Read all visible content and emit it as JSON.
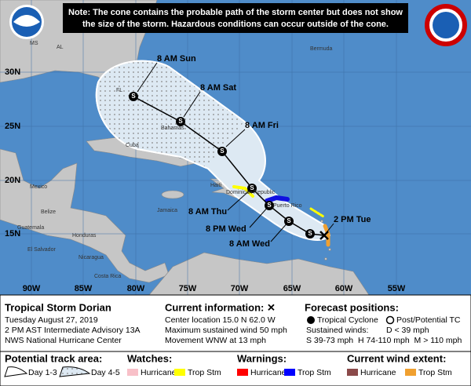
{
  "banner": {
    "lines": [
      "Note: The cone contains the probable path of the storm center but does not show",
      "the size of the storm. Hazardous conditions can occur outside of the cone."
    ]
  },
  "map": {
    "lat_labels": [
      "30N",
      "25N",
      "20N",
      "15N"
    ],
    "lon_labels": [
      "90W",
      "85W",
      "80W",
      "75W",
      "70W",
      "65W",
      "60W",
      "55W"
    ],
    "places": [
      "MS",
      "AL",
      "Bermuda",
      "FL",
      "Bahamas",
      "Cuba",
      "Mexico",
      "Belize",
      "Guatemala",
      "Honduras",
      "El Salvador",
      "Nicaragua",
      "Costa Rica",
      "Jamaica",
      "Haiti",
      "Dominican Republic",
      "Puerto Rico"
    ],
    "forecast_labels": [
      "8 AM Sun",
      "8 AM Sat",
      "8 AM Fri",
      "8 AM Thu",
      "8 PM Wed",
      "8 AM Wed",
      "2 PM Tue"
    ],
    "marker_letter": "S"
  },
  "storm": {
    "name": "Tropical Storm Dorian",
    "date": "Tuesday August 27, 2019",
    "advisory": "2 PM AST Intermediate Advisory 13A",
    "center": "NWS National Hurricane Center"
  },
  "current": {
    "title": "Current information: ✕",
    "lines": [
      "Center location 15.0 N 62.0 W",
      "Maximum sustained wind 50 mph",
      "Movement WNW at 13 mph"
    ]
  },
  "forecast": {
    "title": "Forecast positions:",
    "tc": "Tropical Cyclone",
    "post": "Post/Potential TC",
    "winds": "Sustained winds:",
    "d": "D < 39 mph",
    "scale": "S 39-73 mph  H 74-110 mph  M > 110 mph"
  },
  "legend": {
    "track": {
      "title": "Potential track area:",
      "day13": "Day 1-3",
      "day45": "Day 4-5"
    },
    "watches": {
      "title": "Watches:",
      "hurricane": "Hurricane",
      "trop": "Trop Stm"
    },
    "warnings": {
      "title": "Warnings:",
      "hurricane": "Hurricane",
      "trop": "Trop Stm"
    },
    "extent": {
      "title": "Current wind extent:",
      "hurricane": "Hurricane",
      "trop": "Trop Stm"
    }
  }
}
